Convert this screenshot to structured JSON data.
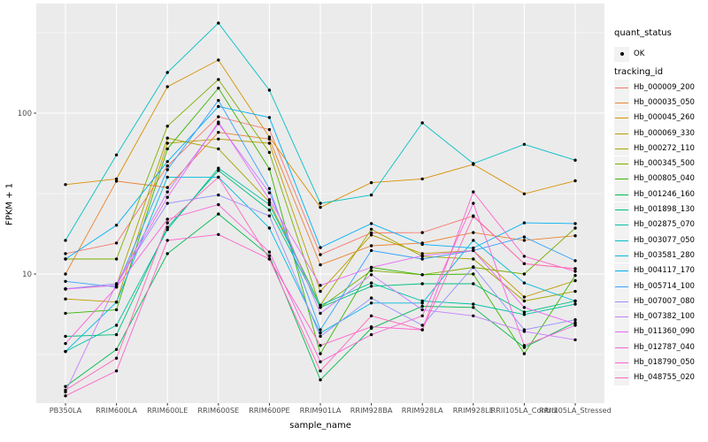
{
  "figure": {
    "y_axis": {
      "title": "FPKM + 1",
      "tick_labels": [
        "100",
        "10"
      ]
    },
    "x_axis": {
      "title": "sample_name"
    },
    "legend": {
      "quant_status": {
        "title": "quant_status",
        "items": [
          {
            "label": "OK",
            "marker": "black-point"
          }
        ]
      },
      "tracking_id": {
        "title": "tracking_id"
      }
    },
    "colors": {
      "panel_background": "#EBEBEB",
      "gridline": "#FFFFFF",
      "key_background": "#F2F2F2",
      "tick_text": "#4D4D4D",
      "point": "#000000"
    }
  },
  "chart_data": {
    "type": "line",
    "title": "",
    "xlabel": "sample_name",
    "ylabel": "FPKM + 1",
    "y_scale": "log10",
    "ylim": [
      1.58,
      480
    ],
    "y_major_ticks": [
      10,
      100
    ],
    "y_minor_gridlines": [
      3.162,
      31.62,
      316.2
    ],
    "grid": "major-and-minor, white on grey panel",
    "legend_position": "right",
    "marker": "small black point on every vertex (quant_status = OK)",
    "categories": [
      "PB350LA",
      "RRIM600LA",
      "RRIM600LE",
      "RRIM600SE",
      "RRIM600PE",
      "RRIM901LA",
      "RRIM928BA",
      "RRIM928LA",
      "RRIM928LE",
      "RRII105LA_Control",
      "RRII105LA_Stressed"
    ],
    "series": [
      {
        "name": "Hb_000009_200",
        "color": "#F8766D",
        "values": [
          13.4,
          15.6,
          47,
          95,
          79,
          13.2,
          18,
          18.1,
          23,
          11.6,
          10.8
        ]
      },
      {
        "name": "Hb_000035_050",
        "color": "#EA8331",
        "values": [
          10,
          37.8,
          34.5,
          76,
          69,
          11.4,
          15,
          15.6,
          18.1,
          16.2,
          17.3
        ]
      },
      {
        "name": "Hb_000045_260",
        "color": "#D89000",
        "values": [
          36,
          39,
          146,
          214,
          71,
          26,
          37,
          39,
          48,
          31.5,
          38
        ]
      },
      {
        "name": "Hb_000069_330",
        "color": "#C09B00",
        "values": [
          7.0,
          6.7,
          65,
          69,
          65,
          7.8,
          17.5,
          13.4,
          14,
          7.2,
          9.1
        ]
      },
      {
        "name": "Hb_000272_110",
        "color": "#A3A500",
        "values": [
          8.1,
          8.5,
          70,
          60,
          28,
          6.4,
          19,
          12.9,
          12.4,
          6.8,
          7.8
        ]
      },
      {
        "name": "Hb_000345_500",
        "color": "#7CAE00",
        "values": [
          12.4,
          12.4,
          83,
          162,
          57,
          6.2,
          10.5,
          9.9,
          11,
          10,
          19.3
        ]
      },
      {
        "name": "Hb_000805_040",
        "color": "#39B600",
        "values": [
          5.7,
          6.0,
          60,
          143,
          45,
          3.2,
          11,
          9.9,
          10,
          3.2,
          9.8
        ]
      },
      {
        "name": "Hb_001246_160",
        "color": "#00BB4E",
        "values": [
          2.0,
          3.4,
          13.4,
          23.6,
          13,
          2.2,
          4.6,
          6.3,
          6.2,
          3.5,
          5.0
        ]
      },
      {
        "name": "Hb_001898_130",
        "color": "#00BF7D",
        "values": [
          4.1,
          4.2,
          19.5,
          44,
          25,
          6.2,
          8.4,
          8.7,
          8.7,
          5.8,
          6.8
        ]
      },
      {
        "name": "Hb_002875_070",
        "color": "#00C1A3",
        "values": [
          3.3,
          4.8,
          18.9,
          45.5,
          27,
          6.4,
          8.8,
          6.8,
          6.5,
          5.6,
          6.5
        ]
      },
      {
        "name": "Hb_003077_050",
        "color": "#00BFC4",
        "values": [
          16.2,
          55,
          179,
          363,
          139,
          27.5,
          31,
          87,
          48.6,
          64,
          51
        ]
      },
      {
        "name": "Hb_003581_280",
        "color": "#00BAE0",
        "values": [
          3.3,
          6.7,
          40,
          40,
          19.3,
          4.3,
          6.6,
          6.6,
          16.2,
          8.8,
          6.8
        ]
      },
      {
        "name": "Hb_004117_170",
        "color": "#00B0F6",
        "values": [
          12.4,
          20.1,
          50,
          110,
          94,
          14.6,
          20.6,
          15.3,
          14.5,
          20.8,
          20.6
        ]
      },
      {
        "name": "Hb_005714_100",
        "color": "#35A2FF",
        "values": [
          9.0,
          8.3,
          44.5,
          120,
          34,
          4.5,
          14,
          12.4,
          14,
          17,
          12.1
        ]
      },
      {
        "name": "Hb_007007_080",
        "color": "#9590FF",
        "values": [
          8.1,
          8.7,
          27.5,
          31,
          23,
          4.1,
          7.1,
          4.8,
          11.1,
          4.5,
          5.2
        ]
      },
      {
        "name": "Hb_007382_100",
        "color": "#C77CFF",
        "values": [
          1.85,
          8.7,
          32.4,
          86,
          32,
          5.7,
          9.9,
          6.0,
          5.5,
          4.4,
          3.9
        ]
      },
      {
        "name": "Hb_011360_090",
        "color": "#E76BF3",
        "values": [
          8.05,
          8.5,
          30,
          88,
          29,
          8.5,
          11,
          13,
          14,
          6.2,
          4.9
        ]
      },
      {
        "name": "Hb_012787_040",
        "color": "#FA62DB",
        "values": [
          3.7,
          8.3,
          21.9,
          27,
          13.7,
          2.85,
          4.2,
          5.5,
          27.5,
          3.6,
          4.8
        ]
      },
      {
        "name": "Hb_018790_050",
        "color": "#FF61CC",
        "values": [
          1.75,
          2.5,
          16.2,
          17.6,
          12.4,
          3.6,
          4.7,
          4.5,
          32.4,
          12.9,
          10.4
        ]
      },
      {
        "name": "Hb_048755_020",
        "color": "#FF67BB",
        "values": [
          1.9,
          3.0,
          20.8,
          40,
          12.4,
          2.5,
          5.5,
          4.5,
          22.8,
          11.6,
          10.8
        ]
      }
    ]
  }
}
